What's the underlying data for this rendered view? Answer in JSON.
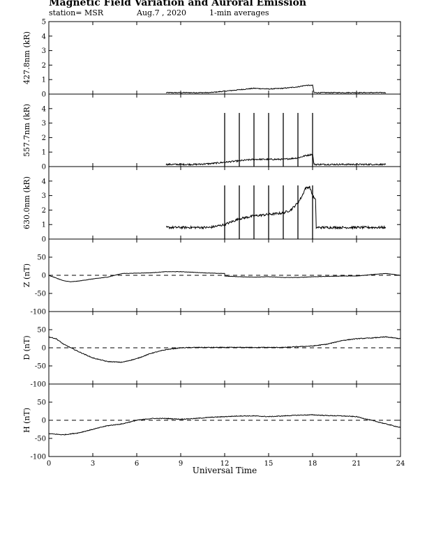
{
  "header": {
    "title": "Magnetic Field Variation and Auroral Emission",
    "station": "station= MSR",
    "date": "Aug.7  , 2020",
    "averaging": "1-min averages"
  },
  "chart_data": [
    {
      "id": "p4278",
      "type": "line",
      "ylabel": "427.8nm (kR)",
      "ylim": [
        0,
        5
      ],
      "yticks": [
        0,
        1,
        2,
        3,
        4,
        5
      ],
      "xlim": [
        0,
        24
      ],
      "series": [
        {
          "x": [
            8.0,
            9.0,
            10.0,
            11.0,
            12.0,
            13.0,
            14.0,
            15.0,
            16.0,
            17.0,
            17.5,
            18.0,
            18.1,
            19.0,
            20.0,
            21.0,
            22.0,
            23.0
          ],
          "y": [
            0.1,
            0.1,
            0.1,
            0.1,
            0.2,
            0.3,
            0.4,
            0.35,
            0.4,
            0.5,
            0.6,
            0.6,
            0.1,
            0.1,
            0.1,
            0.1,
            0.1,
            0.1
          ],
          "noise": 0.03
        }
      ]
    },
    {
      "id": "p5577",
      "type": "line",
      "ylabel": "557.7nm (kR)",
      "ylim": [
        0,
        5
      ],
      "yticks": [
        0,
        1,
        2,
        3,
        4
      ],
      "xlim": [
        0,
        24
      ],
      "series": [
        {
          "x": [
            8.0,
            9.0,
            10.0,
            11.0,
            12.0,
            13.0,
            14.0,
            15.0,
            16.0,
            17.0,
            17.5,
            18.0,
            18.1,
            19.0,
            20.0,
            21.0,
            22.0,
            23.0
          ],
          "y": [
            0.15,
            0.15,
            0.15,
            0.2,
            0.3,
            0.4,
            0.5,
            0.5,
            0.5,
            0.6,
            0.75,
            0.85,
            0.15,
            0.15,
            0.15,
            0.15,
            0.15,
            0.15
          ],
          "noise": 0.05
        }
      ],
      "spikes": {
        "x": [
          12,
          13,
          14,
          15,
          16,
          17,
          18
        ],
        "y": 3.7
      }
    },
    {
      "id": "p6300",
      "type": "line",
      "ylabel": "630.0nm (kR)",
      "ylim": [
        0,
        5
      ],
      "yticks": [
        0,
        1,
        2,
        3,
        4
      ],
      "xlim": [
        0,
        24
      ],
      "series": [
        {
          "x": [
            8.0,
            9.0,
            10.0,
            11.0,
            12.0,
            13.0,
            14.0,
            15.0,
            16.0,
            16.5,
            17.0,
            17.3,
            17.5,
            17.8,
            18.0,
            18.2,
            18.25,
            19.0,
            20.0,
            21.0,
            22.0,
            23.0
          ],
          "y": [
            0.8,
            0.8,
            0.8,
            0.8,
            1.0,
            1.4,
            1.6,
            1.7,
            1.8,
            2.0,
            2.5,
            3.0,
            3.5,
            3.6,
            3.0,
            2.7,
            0.8,
            0.8,
            0.8,
            0.8,
            0.8,
            0.8
          ],
          "noise": 0.08
        }
      ],
      "spikes": {
        "x": [
          12,
          13,
          14,
          15,
          16,
          17,
          18
        ],
        "y": 3.7
      }
    },
    {
      "id": "pZ",
      "type": "line",
      "ylabel": "Z (nT)",
      "ylim": [
        -100,
        100
      ],
      "yticks": [
        -100,
        -50,
        0,
        50
      ],
      "xlim": [
        0,
        24
      ],
      "zero_line": true,
      "series": [
        {
          "x": [
            0,
            1,
            1.5,
            2,
            3,
            4,
            5,
            6,
            7,
            8,
            9,
            10,
            11,
            12,
            12.01,
            13,
            14,
            15,
            16,
            17,
            18,
            19,
            20,
            21,
            22,
            23,
            24
          ],
          "y": [
            0,
            -15,
            -18,
            -16,
            -10,
            -5,
            5,
            6,
            7,
            10,
            10,
            8,
            6,
            5,
            -2,
            -4,
            -5,
            -4,
            -6,
            -6,
            -4,
            -3,
            -2,
            -2,
            2,
            5,
            0
          ],
          "noise": 0.5
        }
      ]
    },
    {
      "id": "pD",
      "type": "line",
      "ylabel": "D (nT)",
      "ylim": [
        -100,
        100
      ],
      "yticks": [
        -100,
        -50,
        0,
        50
      ],
      "xlim": [
        0,
        24
      ],
      "zero_line": true,
      "series": [
        {
          "x": [
            0,
            0.5,
            1,
            2,
            3,
            4,
            5,
            6,
            7,
            8,
            9,
            10,
            12,
            14,
            16,
            18,
            19,
            20,
            21,
            22,
            23,
            24
          ],
          "y": [
            30,
            25,
            10,
            -10,
            -28,
            -38,
            -40,
            -30,
            -15,
            -5,
            0,
            1,
            1,
            1,
            1,
            5,
            10,
            20,
            25,
            27,
            30,
            25
          ],
          "noise": 1.0
        }
      ]
    },
    {
      "id": "pH",
      "type": "line",
      "ylabel": "H (nT)",
      "ylim": [
        -100,
        100
      ],
      "yticks": [
        -100,
        -50,
        0,
        50
      ],
      "xlim": [
        0,
        24
      ],
      "zero_line": true,
      "series": [
        {
          "x": [
            0,
            1,
            2,
            3,
            4,
            5,
            6,
            7,
            8,
            9,
            10,
            11,
            12,
            13,
            14,
            15,
            16,
            17,
            18,
            19,
            20,
            21,
            22,
            23,
            24
          ],
          "y": [
            -37,
            -40,
            -35,
            -25,
            -15,
            -10,
            0,
            5,
            5,
            3,
            5,
            8,
            10,
            12,
            12,
            10,
            12,
            14,
            15,
            13,
            12,
            10,
            0,
            -10,
            -20
          ],
          "noise": 1.0
        }
      ]
    }
  ],
  "x_axis": {
    "label": "Universal Time",
    "ticks": [
      0,
      3,
      6,
      9,
      12,
      15,
      18,
      21,
      24
    ]
  }
}
